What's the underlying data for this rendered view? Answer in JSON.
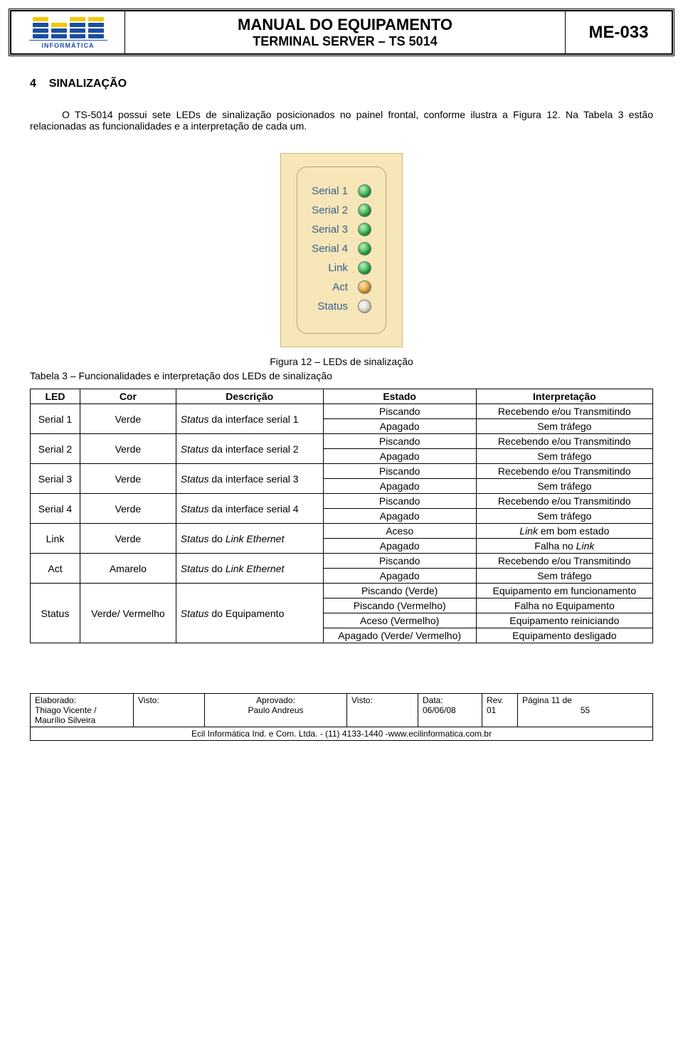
{
  "header": {
    "logo_sub": "INFORMÁTICA",
    "title_main": "MANUAL DO EQUIPAMENTO",
    "title_sub": "TERMINAL SERVER – TS 5014",
    "doc_code": "ME-033"
  },
  "section": {
    "number": "4",
    "title": "SINALIZAÇÃO"
  },
  "para1": "O TS-5014 possui sete LEDs de sinalização posicionados no painel frontal, conforme ilustra a Figura 12. Na Tabela 3 estão relacionadas as funcionalidades e a interpretação de cada um.",
  "figure": {
    "leds": [
      {
        "label": "Serial 1",
        "cls": ""
      },
      {
        "label": "Serial 2",
        "cls": ""
      },
      {
        "label": "Serial 3",
        "cls": ""
      },
      {
        "label": "Serial 4",
        "cls": ""
      },
      {
        "label": "Link",
        "cls": ""
      },
      {
        "label": "Act",
        "cls": "amber"
      },
      {
        "label": "Status",
        "cls": "off"
      }
    ],
    "caption": "Figura 12 – LEDs de sinalização"
  },
  "table": {
    "caption": "Tabela 3 – Funcionalidades e interpretação dos LEDs de sinalização",
    "columns": [
      "LED",
      "Cor",
      "Descrição",
      "Estado",
      "Interpretação"
    ],
    "groups": [
      {
        "led": "Serial 1",
        "cor": "Verde",
        "desc_pre": "Status",
        "desc_rest": " da interface serial 1",
        "rows": [
          [
            "Piscando",
            "Recebendo e/ou Transmitindo"
          ],
          [
            "Apagado",
            "Sem tráfego"
          ]
        ]
      },
      {
        "led": "Serial 2",
        "cor": "Verde",
        "desc_pre": "Status",
        "desc_rest": " da interface serial 2",
        "rows": [
          [
            "Piscando",
            "Recebendo e/ou Transmitindo"
          ],
          [
            "Apagado",
            "Sem tráfego"
          ]
        ]
      },
      {
        "led": "Serial 3",
        "cor": "Verde",
        "desc_pre": "Status",
        "desc_rest": " da interface serial 3",
        "rows": [
          [
            "Piscando",
            "Recebendo e/ou Transmitindo"
          ],
          [
            "Apagado",
            "Sem tráfego"
          ]
        ]
      },
      {
        "led": "Serial 4",
        "cor": "Verde",
        "desc_pre": "Status",
        "desc_rest": " da interface serial 4",
        "rows": [
          [
            "Piscando",
            "Recebendo e/ou Transmitindo"
          ],
          [
            "Apagado",
            "Sem tráfego"
          ]
        ]
      },
      {
        "led": "Link",
        "cor": "Verde",
        "desc_pre": "Status",
        "desc_rest": " do ",
        "desc_i2": "Link Ethernet",
        "rows": [
          [
            "Aceso",
            "<i>Link</i> em bom estado"
          ],
          [
            "Apagado",
            "Falha no <i>Link</i>"
          ]
        ]
      },
      {
        "led": "Act",
        "cor": "Amarelo",
        "desc_pre": "Status",
        "desc_rest": " do ",
        "desc_i2": "Link Ethernet",
        "rows": [
          [
            "Piscando",
            "Recebendo e/ou Transmitindo"
          ],
          [
            "Apagado",
            "Sem tráfego"
          ]
        ]
      },
      {
        "led": "Status",
        "cor": "Verde/ Vermelho",
        "desc_pre": "Status",
        "desc_rest": " do Equipamento",
        "rows": [
          [
            "Piscando (Verde)",
            "Equipamento em funcionamento"
          ],
          [
            "Piscando (Vermelho)",
            "Falha no Equipamento"
          ],
          [
            "Aceso (Vermelho)",
            "Equipamento reiniciando"
          ],
          [
            "Apagado (Verde/ Vermelho)",
            "Equipamento desligado"
          ]
        ]
      }
    ]
  },
  "footer": {
    "cells": {
      "elab_label": "Elaborado:",
      "elab_val": "Thiago Vicente / Maurílio Silveira",
      "visto1_label": "Visto:",
      "aprov_label": "Aprovado:",
      "aprov_val": "Paulo Andreus",
      "visto2_label": "Visto:",
      "data_label": "Data:",
      "data_val": "06/06/08",
      "rev_label": "Rev.",
      "rev_val": "01",
      "page_label": "Página 11 de",
      "page_total": "55"
    },
    "bottom": "Ecil Informática Ind. e Com. Ltda. - (11) 4133-1440 -www.ecilinformatica.com.br"
  }
}
